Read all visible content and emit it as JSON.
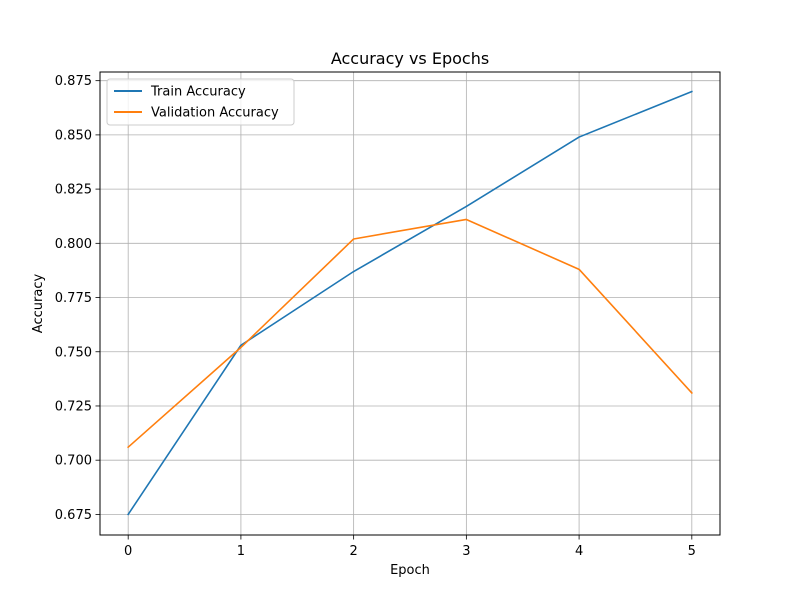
{
  "chart_data": {
    "type": "line",
    "title": "Accuracy vs Epochs",
    "xlabel": "Epoch",
    "ylabel": "Accuracy",
    "x": [
      0,
      1,
      2,
      3,
      4,
      5
    ],
    "xlim": [
      -0.25,
      5.25
    ],
    "ylim": [
      0.6655,
      0.879
    ],
    "xticks": [
      0,
      1,
      2,
      3,
      4,
      5
    ],
    "yticks": [
      0.675,
      0.7,
      0.725,
      0.75,
      0.775,
      0.8,
      0.825,
      0.85,
      0.875
    ],
    "ytick_labels": [
      "0.675",
      "0.700",
      "0.725",
      "0.750",
      "0.775",
      "0.800",
      "0.825",
      "0.850",
      "0.875"
    ],
    "grid": true,
    "legend_position": "upper-left",
    "series": [
      {
        "name": "Train Accuracy",
        "color": "#1f77b4",
        "values": [
          0.675,
          0.753,
          0.787,
          0.817,
          0.849,
          0.87
        ]
      },
      {
        "name": "Validation Accuracy",
        "color": "#ff7f0e",
        "values": [
          0.706,
          0.752,
          0.802,
          0.811,
          0.788,
          0.731
        ]
      }
    ]
  }
}
